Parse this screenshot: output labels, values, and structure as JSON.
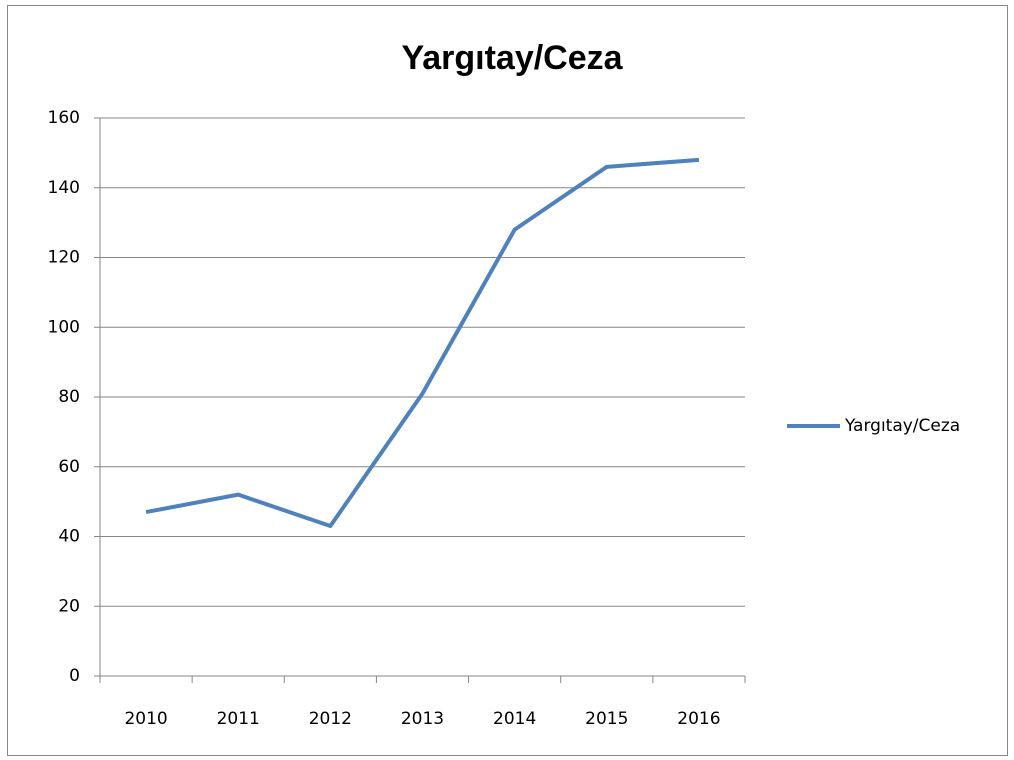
{
  "chart_data": {
    "type": "line",
    "title": "Yargıtay/Ceza",
    "categories": [
      "2010",
      "2011",
      "2012",
      "2013",
      "2014",
      "2015",
      "2016"
    ],
    "series": [
      {
        "name": "Yargıtay/Ceza",
        "color": "#4f81bd",
        "values": [
          47,
          52,
          43,
          81,
          128,
          146,
          148
        ]
      }
    ],
    "ylim": [
      0,
      160
    ],
    "yticks": [
      0,
      20,
      40,
      60,
      80,
      100,
      120,
      140,
      160
    ],
    "grid": true,
    "legend": "right"
  }
}
